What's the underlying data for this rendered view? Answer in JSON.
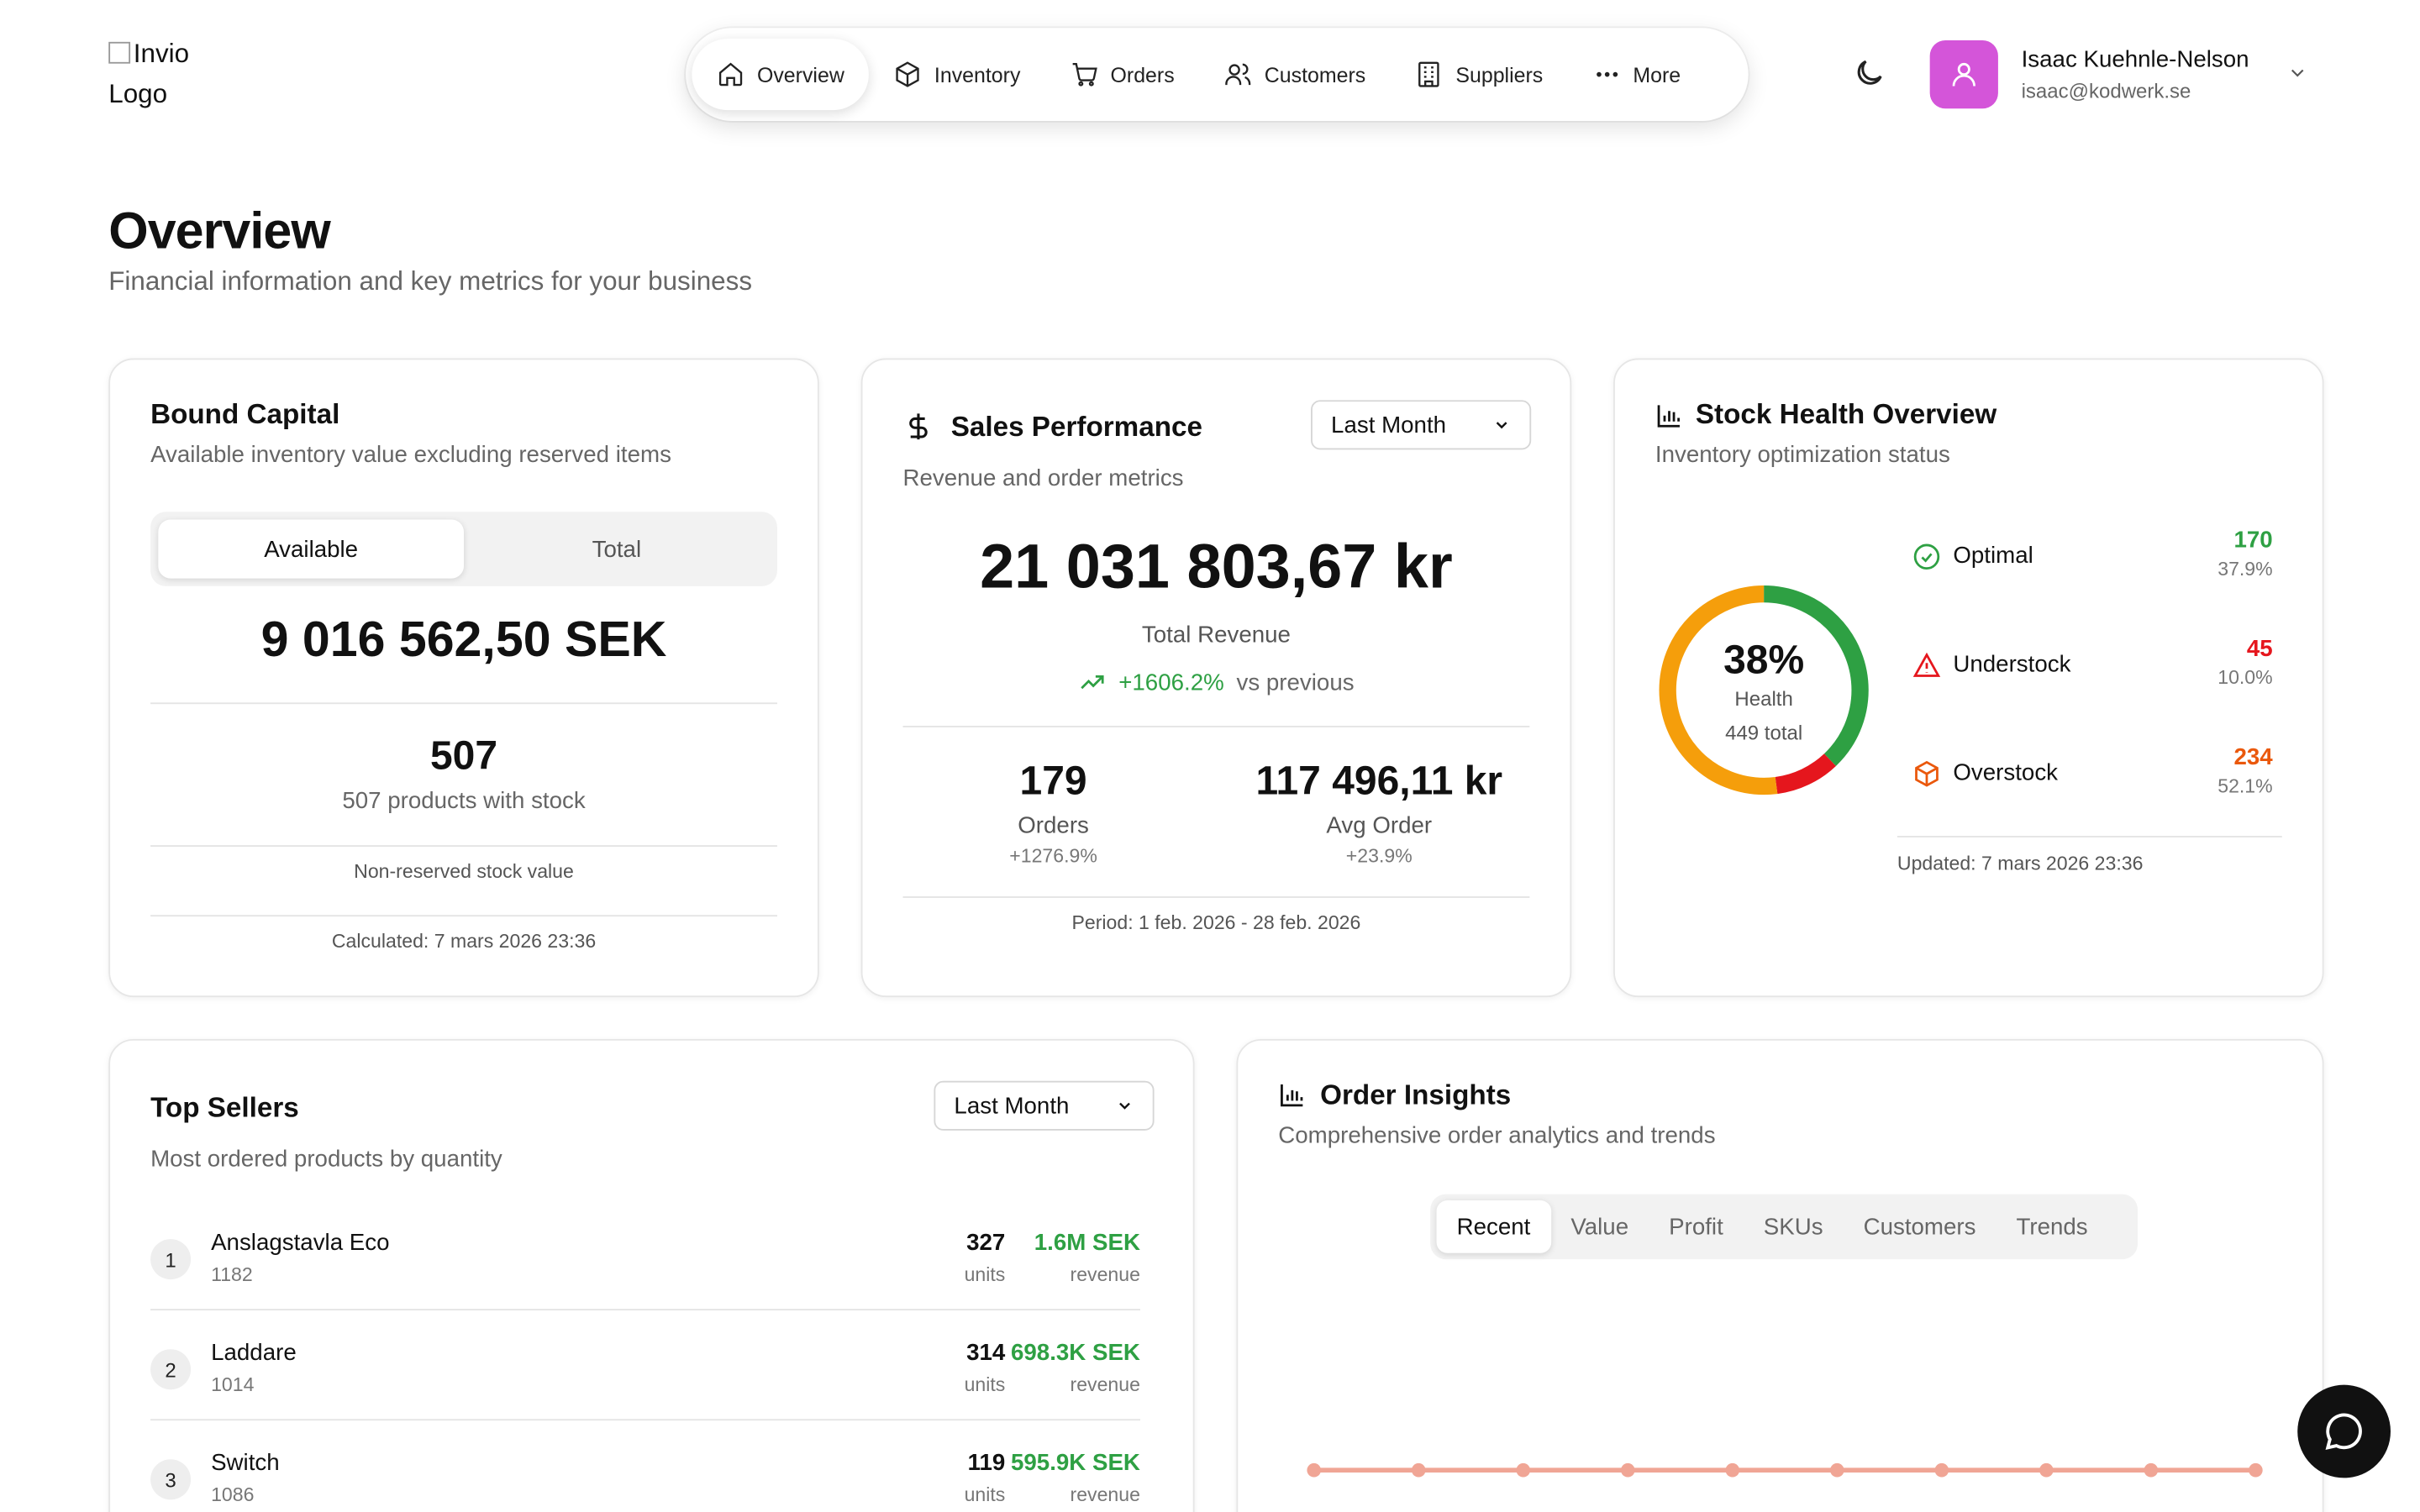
{
  "header": {
    "logo_alt": "Invio Logo",
    "nav": [
      {
        "label": "Overview",
        "icon": "home-icon",
        "active": true
      },
      {
        "label": "Inventory",
        "icon": "box-icon"
      },
      {
        "label": "Orders",
        "icon": "cart-icon"
      },
      {
        "label": "Customers",
        "icon": "users-icon"
      },
      {
        "label": "Suppliers",
        "icon": "building-icon"
      },
      {
        "label": "More",
        "icon": "more-icon"
      }
    ],
    "user": {
      "name": "Isaac Kuehnle-Nelson",
      "email": "isaac@kodwerk.se",
      "avatar_color": "#d455d9"
    }
  },
  "page": {
    "title": "Overview",
    "subtitle": "Financial information and key metrics for your business"
  },
  "bound_capital": {
    "title": "Bound Capital",
    "subtitle": "Available inventory value excluding reserved items",
    "toggle": [
      "Available",
      "Total"
    ],
    "toggle_selected": "Available",
    "value": "9 016 562,50 SEK",
    "products_count": "507",
    "products_label": "507 products with stock",
    "note": "Non-reserved stock value",
    "calculated": "Calculated: 7 mars 2026 23:36"
  },
  "sales_performance": {
    "title": "Sales Performance",
    "period_select": "Last Month",
    "subtitle": "Revenue and order metrics",
    "total_revenue": "21 031 803,67 kr",
    "total_revenue_label": "Total Revenue",
    "change": "+1606.2%",
    "change_label": "vs previous",
    "orders": "179",
    "orders_label": "Orders",
    "orders_change": "+1276.9%",
    "avg_order": "117 496,11 kr",
    "avg_order_label": "Avg Order",
    "avg_order_change": "+23.9%",
    "period": "Period: 1 feb. 2026 - 28 feb. 2026"
  },
  "stock_health": {
    "title": "Stock Health Overview",
    "subtitle": "Inventory optimization status",
    "health_pct": "38%",
    "health_label": "Health",
    "total_label": "449 total",
    "rows": [
      {
        "label": "Optimal",
        "count": "170",
        "pct": "37.9%",
        "color": "#2ea043",
        "icon": "check-circle-icon",
        "fraction": 0.379
      },
      {
        "label": "Understock",
        "count": "45",
        "pct": "10.0%",
        "color": "#e5161d",
        "icon": "warning-triangle-icon",
        "fraction": 0.1
      },
      {
        "label": "Overstock",
        "count": "234",
        "pct": "52.1%",
        "color": "#f59e0b",
        "icon": "package-icon",
        "fraction": 0.521
      }
    ],
    "updated": "Updated: 7 mars 2026 23:36"
  },
  "top_sellers": {
    "title": "Top Sellers",
    "period_select": "Last Month",
    "subtitle": "Most ordered products by quantity",
    "items": [
      {
        "rank": "1",
        "name": "Anslagstavla Eco",
        "sku": "1182",
        "units": "327",
        "units_label": "units",
        "revenue": "1.6M SEK",
        "revenue_label": "revenue"
      },
      {
        "rank": "2",
        "name": "Laddare",
        "sku": "1014",
        "units": "314",
        "units_label": "units",
        "revenue": "698.3K SEK",
        "revenue_label": "revenue"
      },
      {
        "rank": "3",
        "name": "Switch",
        "sku": "1086",
        "units": "119",
        "units_label": "units",
        "revenue": "595.9K SEK",
        "revenue_label": "revenue"
      }
    ]
  },
  "order_insights": {
    "title": "Order Insights",
    "subtitle": "Comprehensive order analytics and trends",
    "tabs": [
      "Recent",
      "Value",
      "Profit",
      "SKUs",
      "Customers",
      "Trends"
    ],
    "active_tab": "Recent",
    "line_color": "#f0a595"
  },
  "chat_button": {
    "icon": "chat-bubble-icon"
  }
}
